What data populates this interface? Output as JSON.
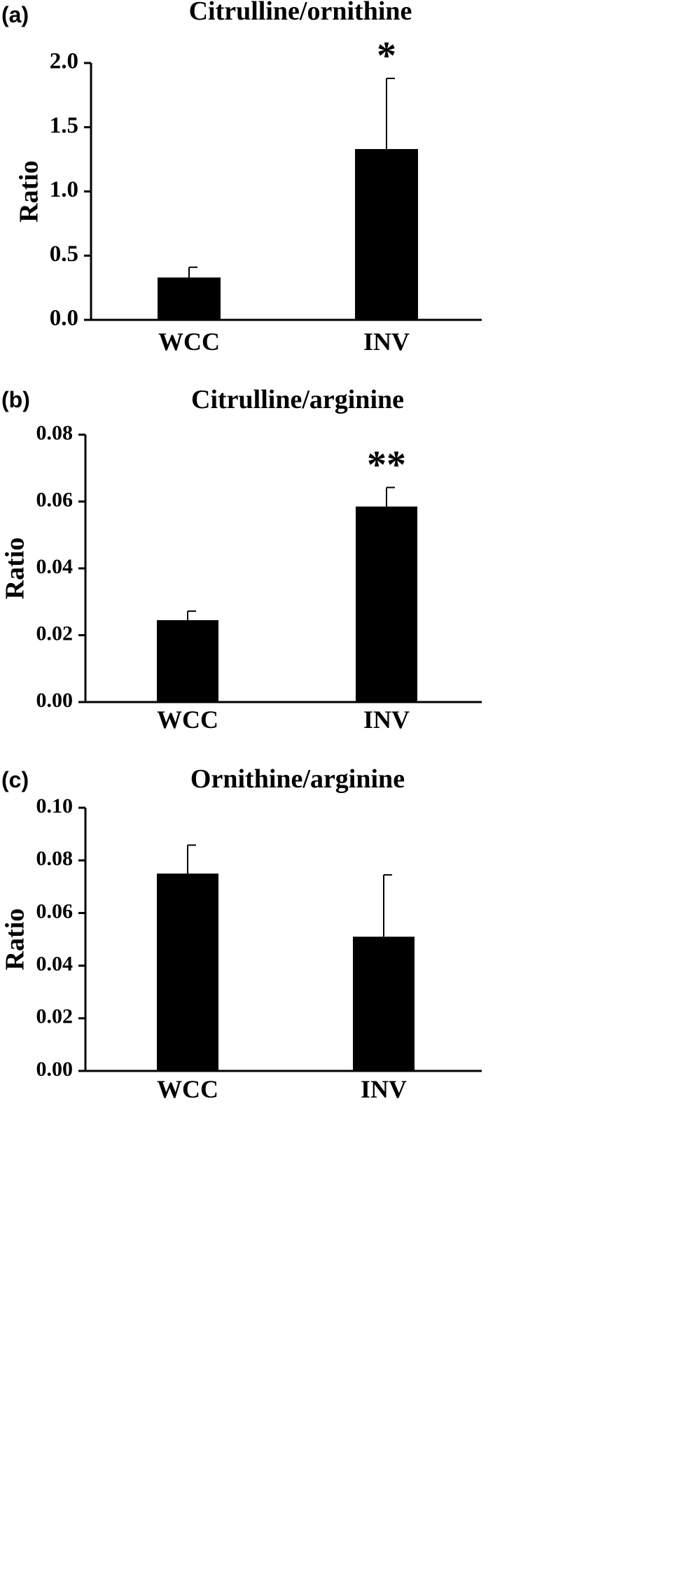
{
  "chart_data": [
    {
      "type": "bar",
      "panel_label": "(a)",
      "title": "Citrulline/ornithine",
      "ylabel": "Ratio",
      "xlabel": "",
      "categories": [
        "WCC",
        "INV"
      ],
      "values": [
        0.33,
        1.33
      ],
      "error_upper": [
        0.41,
        1.88
      ],
      "ylim": [
        0,
        2.0
      ],
      "yticks": [
        0.0,
        0.5,
        1.0,
        1.5,
        2.0
      ],
      "ytick_labels": [
        "0.0",
        "0.5",
        "1.0",
        "1.5",
        "2.0"
      ],
      "significance": [
        "",
        "*"
      ],
      "bar_color": "#000000",
      "grid": false,
      "legend": "none"
    },
    {
      "type": "bar",
      "panel_label": "(b)",
      "title": "Citrulline/arginine",
      "ylabel": "Ratio",
      "xlabel": "",
      "categories": [
        "WCC",
        "INV"
      ],
      "values": [
        0.0245,
        0.0585
      ],
      "error_upper": [
        0.0272,
        0.0642
      ],
      "ylim": [
        0,
        0.08
      ],
      "yticks": [
        0.0,
        0.02,
        0.04,
        0.06,
        0.08
      ],
      "ytick_labels": [
        "0.00",
        "0.02",
        "0.04",
        "0.06",
        "0.08"
      ],
      "significance": [
        "",
        "**"
      ],
      "bar_color": "#000000",
      "grid": false,
      "legend": "none"
    },
    {
      "type": "bar",
      "panel_label": "(c)",
      "title": "Ornithine/arginine",
      "ylabel": "Ratio",
      "xlabel": "",
      "categories": [
        "WCC",
        "INV"
      ],
      "values": [
        0.075,
        0.051
      ],
      "error_upper": [
        0.0858,
        0.0745
      ],
      "ylim": [
        0,
        0.1
      ],
      "yticks": [
        0.0,
        0.02,
        0.04,
        0.06,
        0.08,
        0.1
      ],
      "ytick_labels": [
        "0.00",
        "0.02",
        "0.04",
        "0.06",
        "0.08",
        "0.10"
      ],
      "significance": [
        "",
        ""
      ],
      "bar_color": "#000000",
      "grid": false,
      "legend": "none"
    }
  ]
}
